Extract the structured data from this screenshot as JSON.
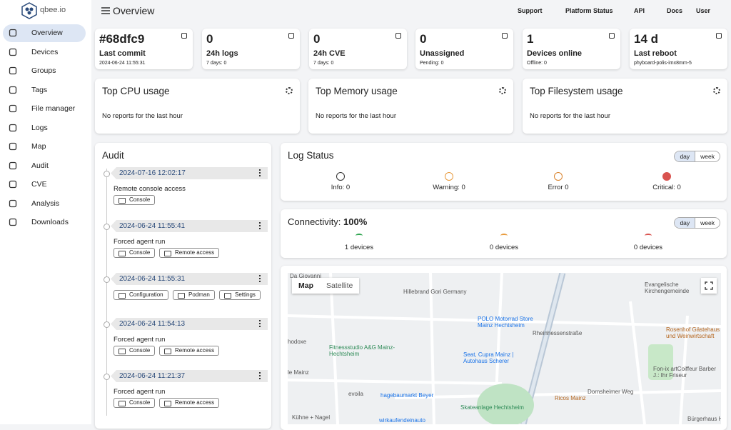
{
  "header": {
    "logo": "qbee.io",
    "title": "Overview",
    "links": [
      "Support",
      "Platform Status",
      "API",
      "Docs",
      "User"
    ]
  },
  "sidebar": [
    "Overview",
    "Devices",
    "Groups",
    "Tags",
    "File manager",
    "Logs",
    "Map",
    "Audit",
    "CVE",
    "Analysis",
    "Downloads"
  ],
  "stats": [
    {
      "value": "#68dfc9",
      "label": "Last commit",
      "sub": "2024-06-24 11:55:31"
    },
    {
      "value": 0,
      "label": "24h logs",
      "sub": "7 days: 0"
    },
    {
      "value": 0,
      "label": "24h CVE",
      "sub": "7 days: 0"
    },
    {
      "value": 0,
      "label": "Unassigned",
      "sub": "Pending: 0"
    },
    {
      "value": 1,
      "label": "Devices online",
      "sub": "Offline: 0"
    },
    {
      "value": "14 d",
      "label": "Last reboot",
      "sub": "phyboard-polis-imx8mm-5"
    }
  ],
  "usage": [
    {
      "title": "Top CPU usage",
      "text": "No reports for the last hour"
    },
    {
      "title": "Top Memory usage",
      "text": "No reports for the last hour"
    },
    {
      "title": "Top Filesystem usage",
      "text": "No reports for the last hour"
    }
  ],
  "audit": {
    "title": "Audit",
    "entries": [
      {
        "time": "2024-07-16 12:02:17",
        "text": "Remote console access",
        "buttons": [
          "Console"
        ]
      },
      {
        "time": "2024-06-24 11:55:41",
        "text": "Forced agent run",
        "buttons": [
          "Console",
          "Remote access"
        ]
      },
      {
        "time": "2024-06-24 11:55:31",
        "buttons": [
          "Configuration",
          "Podman",
          "Settings"
        ]
      },
      {
        "time": "2024-06-24 11:54:13",
        "text": "Forced agent run",
        "buttons": [
          "Console",
          "Remote access"
        ]
      },
      {
        "time": "2024-06-24 11:21:37",
        "text": "Forced agent run",
        "buttons": [
          "Console",
          "Remote access"
        ]
      }
    ]
  },
  "log_status": {
    "title": "Log Status",
    "toggle": [
      "day",
      "week"
    ],
    "items": [
      "Info: 0",
      "Warning: 0",
      "Error 0",
      "Critical: 0"
    ]
  },
  "connectivity": {
    "title": "Connectivity:",
    "percent": "100%",
    "toggle": [
      "day",
      "week"
    ],
    "items": [
      "1 devices",
      "0 devices",
      "0 devices"
    ]
  },
  "map": {
    "tabs": [
      "Map",
      "Satellite"
    ],
    "labels": [
      "Da Giovanni",
      "Hillebrand Gori Germany",
      "Evangelische Kirchengemeinde",
      "POLO Motorrad Store Mainz Hechtsheim",
      "Rheinhessenstraße",
      "Rosenhof Gästehaus und Weinwirtschaft",
      "hodoxe",
      "Fitnessstudio A&G Mainz-Hechtsheim",
      "Seat, Cupra Mainz | Autohaus Scherer",
      "Fon-ix artCoiffeur Barber J.: Ihr Friseur",
      "le Mainz",
      "evoila",
      "hagebaumarkt Beyer",
      "Ricos Mainz",
      "Dornsheimer Weg",
      "Skateanlage Hechtsheim",
      "Kühne + Nagel",
      "wirkaufendeinauto",
      "Bürgerhaus H"
    ]
  }
}
